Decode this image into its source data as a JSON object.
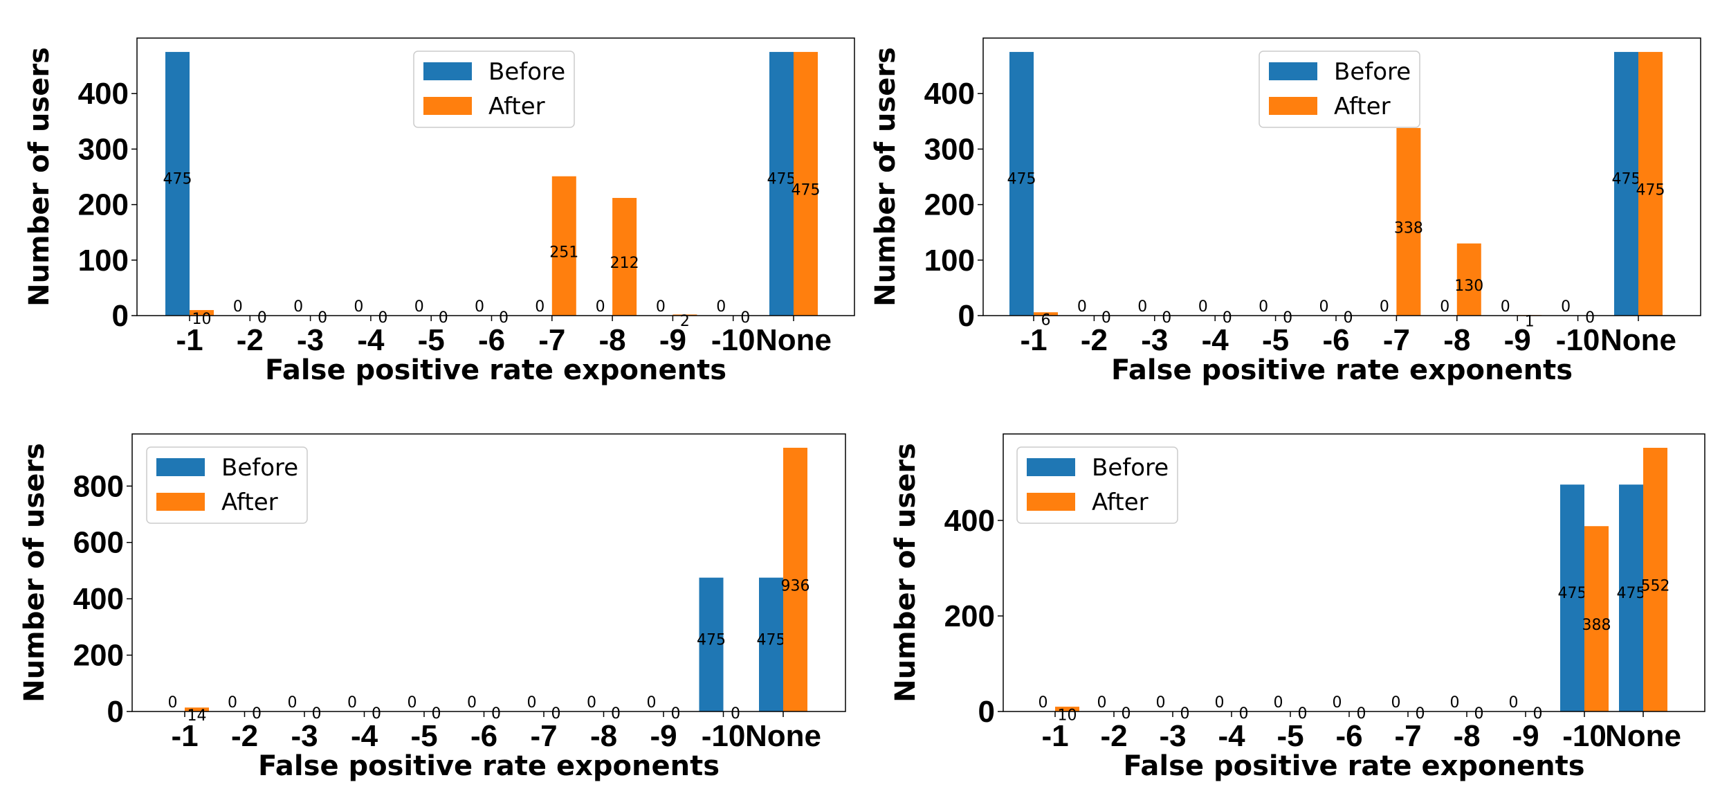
{
  "colors": {
    "before": "#1f77b4",
    "after": "#ff7f0e"
  },
  "chart_data": [
    {
      "type": "bar",
      "categories": [
        "-1",
        "-2",
        "-3",
        "-4",
        "-5",
        "-6",
        "-7",
        "-8",
        "-9",
        "-10",
        "None"
      ],
      "series": [
        {
          "name": "Before",
          "values": [
            475,
            0,
            0,
            0,
            0,
            0,
            0,
            0,
            0,
            0,
            475
          ]
        },
        {
          "name": "After",
          "values": [
            10,
            0,
            0,
            0,
            0,
            0,
            251,
            212,
            2,
            0,
            475
          ]
        }
      ],
      "xlabel": "False positive rate exponents",
      "ylabel": "Number of users",
      "ylim": [
        0,
        500
      ],
      "yticks": [
        0,
        100,
        200,
        300,
        400
      ],
      "legend": "top-center",
      "grid": false
    },
    {
      "type": "bar",
      "categories": [
        "-1",
        "-2",
        "-3",
        "-4",
        "-5",
        "-6",
        "-7",
        "-8",
        "-9",
        "-10",
        "None"
      ],
      "series": [
        {
          "name": "Before",
          "values": [
            475,
            0,
            0,
            0,
            0,
            0,
            0,
            0,
            0,
            0,
            475
          ]
        },
        {
          "name": "After",
          "values": [
            6,
            0,
            0,
            0,
            0,
            0,
            338,
            130,
            1,
            0,
            475
          ]
        }
      ],
      "xlabel": "False positive rate exponents",
      "ylabel": "Number of users",
      "ylim": [
        0,
        500
      ],
      "yticks": [
        0,
        100,
        200,
        300,
        400
      ],
      "legend": "top-center",
      "grid": false
    },
    {
      "type": "bar",
      "categories": [
        "-1",
        "-2",
        "-3",
        "-4",
        "-5",
        "-6",
        "-7",
        "-8",
        "-9",
        "-10",
        "None"
      ],
      "series": [
        {
          "name": "Before",
          "values": [
            0,
            0,
            0,
            0,
            0,
            0,
            0,
            0,
            0,
            475,
            475
          ]
        },
        {
          "name": "After",
          "values": [
            14,
            0,
            0,
            0,
            0,
            0,
            0,
            0,
            0,
            0,
            936
          ]
        }
      ],
      "xlabel": "False positive rate exponents",
      "ylabel": "Number of users",
      "ylim": [
        0,
        985
      ],
      "yticks": [
        0,
        200,
        400,
        600,
        800
      ],
      "legend": "top-left",
      "grid": false
    },
    {
      "type": "bar",
      "categories": [
        "-1",
        "-2",
        "-3",
        "-4",
        "-5",
        "-6",
        "-7",
        "-8",
        "-9",
        "-10",
        "None"
      ],
      "series": [
        {
          "name": "Before",
          "values": [
            0,
            0,
            0,
            0,
            0,
            0,
            0,
            0,
            0,
            475,
            475
          ]
        },
        {
          "name": "After",
          "values": [
            10,
            0,
            0,
            0,
            0,
            0,
            0,
            0,
            0,
            388,
            552
          ]
        }
      ],
      "xlabel": "False positive rate exponents",
      "ylabel": "Number of users",
      "ylim": [
        0,
        581
      ],
      "yticks": [
        0,
        200,
        400
      ],
      "legend": "top-left",
      "grid": false
    }
  ]
}
